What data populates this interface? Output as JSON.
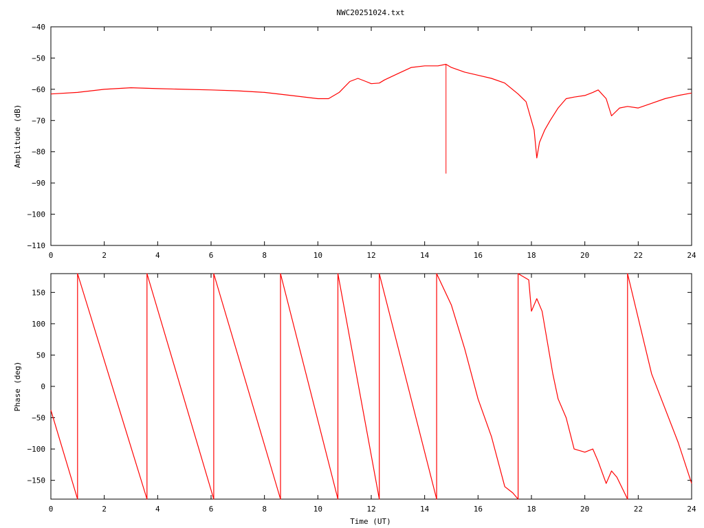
{
  "chart_data": [
    {
      "type": "line",
      "title": "NWC20251024.txt",
      "xlabel": "",
      "ylabel": "Amplitude (dB)",
      "xlim": [
        0,
        24
      ],
      "ylim": [
        -110,
        -40
      ],
      "x_ticks": [
        "0",
        "2",
        "4",
        "6",
        "8",
        "10",
        "12",
        "14",
        "16",
        "18",
        "20",
        "22",
        "24"
      ],
      "y_ticks": [
        "-40",
        "-50",
        "-60",
        "-70",
        "-80",
        "-90",
        "-100",
        "-110"
      ],
      "grid": false,
      "line_color": "#ff0000",
      "series": [
        {
          "x": [
            0,
            1,
            2,
            3,
            4,
            5,
            6,
            7,
            8,
            9,
            10,
            10.4,
            10.8,
            11.2,
            11.5,
            11.8,
            12.0,
            12.3,
            12.5,
            13.0,
            13.5,
            14.0,
            14.5,
            14.8,
            15.0,
            15.5,
            16.0,
            16.5,
            17.0,
            17.5,
            17.8,
            18.0,
            18.1,
            18.2,
            18.3,
            18.5,
            18.7,
            19.0,
            19.3,
            19.6,
            20.0,
            20.3,
            20.5,
            20.8,
            21.0,
            21.3,
            21.6,
            22.0,
            22.5,
            23.0,
            23.5,
            24.0
          ],
          "y": [
            -61.5,
            -61,
            -60,
            -59.5,
            -59.8,
            -60,
            -60.2,
            -60.5,
            -61,
            -62,
            -63,
            -63,
            -61,
            -57.5,
            -56.5,
            -57.5,
            -58.2,
            -58,
            -57,
            -55,
            -53,
            -52.5,
            -52.5,
            -52,
            -53,
            -54.5,
            -55.5,
            -56.5,
            -58,
            -61.5,
            -64,
            -70,
            -73,
            -82,
            -77,
            -73,
            -70,
            -66,
            -63,
            -62.5,
            -62,
            -61,
            -60.2,
            -63,
            -68.5,
            -66,
            -65.5,
            -66,
            -64.5,
            -63,
            -62,
            -61.2
          ]
        }
      ],
      "spike": {
        "x": 14.8,
        "y_min": -87,
        "y_max": -52
      }
    },
    {
      "type": "line",
      "title": "",
      "xlabel": "Time (UT)",
      "ylabel": "Phase (deg)",
      "xlim": [
        0,
        24
      ],
      "ylim": [
        -180,
        180
      ],
      "x_ticks": [
        "0",
        "2",
        "4",
        "6",
        "8",
        "10",
        "12",
        "14",
        "16",
        "18",
        "20",
        "22",
        "24"
      ],
      "y_ticks": [
        "150",
        "100",
        "50",
        "0",
        "-50",
        "-100",
        "-150"
      ],
      "grid": false,
      "line_color": "#ff0000",
      "series": [
        {
          "x": [
            0,
            1.0,
            1.0,
            3.6,
            3.6,
            6.1,
            6.1,
            8.6,
            8.6,
            10.75,
            10.75,
            12.3,
            12.3,
            14.45,
            14.45,
            15.0,
            15.5,
            16.0,
            16.5,
            17.0,
            17.3,
            17.5,
            17.5,
            17.9,
            17.9,
            18.0,
            18.2,
            18.4,
            18.6,
            18.8,
            19.0,
            19.3,
            19.6,
            20.0,
            20.3,
            20.5,
            20.8,
            21.0,
            21.2,
            21.6,
            21.6,
            22.5,
            23.5,
            24.0
          ],
          "y": [
            -38,
            -180,
            180,
            -180,
            180,
            -180,
            180,
            -180,
            180,
            -180,
            180,
            -180,
            180,
            -180,
            180,
            130,
            60,
            -20,
            -80,
            -160,
            -170,
            -180,
            180,
            170,
            170,
            120,
            140,
            120,
            70,
            20,
            -20,
            -50,
            -100,
            -105,
            -100,
            -120,
            -155,
            -135,
            -145,
            -180,
            180,
            20,
            -90,
            -155
          ]
        }
      ]
    }
  ]
}
